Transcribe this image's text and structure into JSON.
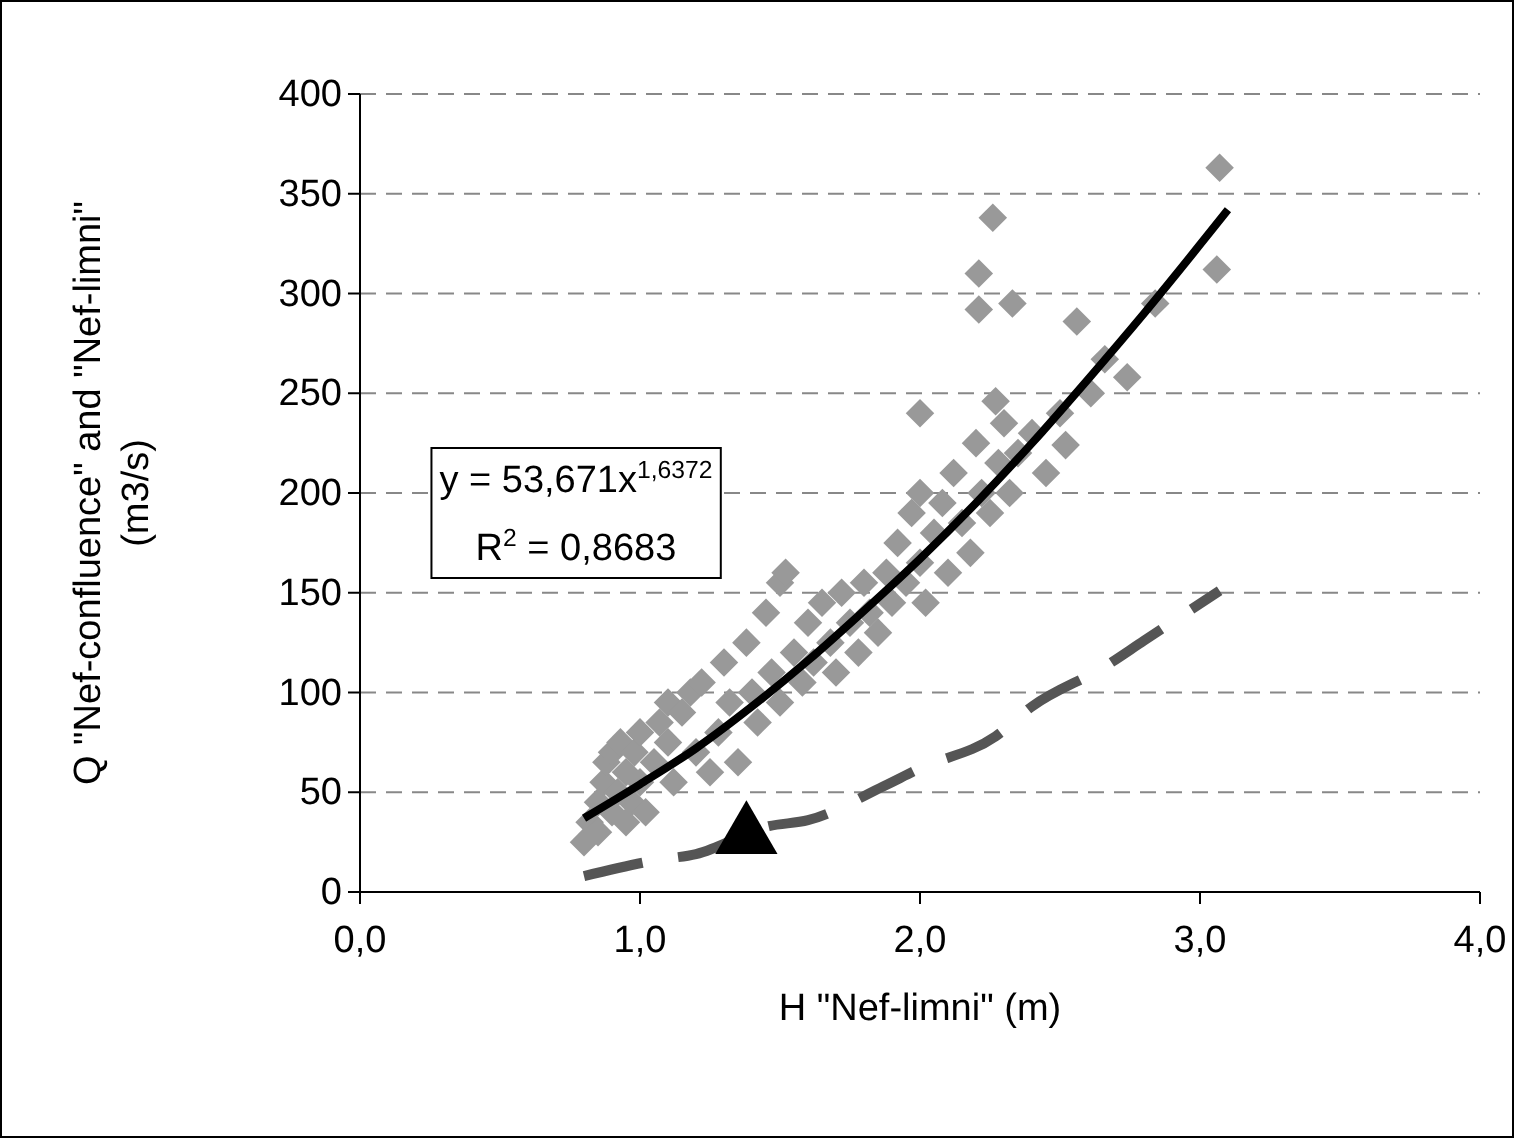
{
  "chart_data": {
    "type": "scatter",
    "xlabel": "H \"Nef-limni\" (m)",
    "ylabel": "Q \"Nef-confluence\" and \"Nef-limni\"\n(m3/s)",
    "xlim": [
      0,
      4
    ],
    "ylim": [
      0,
      400
    ],
    "xticks": [
      {
        "value": 0,
        "label": "0,0"
      },
      {
        "value": 1,
        "label": "1,0"
      },
      {
        "value": 2,
        "label": "2,0"
      },
      {
        "value": 3,
        "label": "3,0"
      },
      {
        "value": 4,
        "label": "4,0"
      }
    ],
    "yticks": [
      0,
      50,
      100,
      150,
      200,
      250,
      300,
      350,
      400
    ],
    "grid": "y",
    "annotations": [
      "y = 53,671x$^{1,6372}$",
      "R$^{2}$ = 0,8683"
    ],
    "series": [
      {
        "marker": "diamond",
        "color": "#999999",
        "x": [
          0.8,
          0.82,
          0.85,
          0.85,
          0.87,
          0.88,
          0.9,
          0.9,
          0.92,
          0.93,
          0.95,
          0.95,
          0.97,
          0.98,
          1.0,
          1.0,
          1.02,
          1.05,
          1.07,
          1.1,
          1.1,
          1.12,
          1.15,
          1.18,
          1.2,
          1.22,
          1.25,
          1.28,
          1.3,
          1.32,
          1.35,
          1.38,
          1.4,
          1.42,
          1.45,
          1.47,
          1.5,
          1.5,
          1.52,
          1.55,
          1.58,
          1.6,
          1.62,
          1.65,
          1.68,
          1.7,
          1.72,
          1.75,
          1.78,
          1.8,
          1.82,
          1.85,
          1.88,
          1.9,
          1.92,
          1.95,
          1.97,
          2.0,
          2.0,
          2.02,
          2.05,
          2.08,
          2.1,
          2.12,
          2.15,
          2.18,
          2.2,
          2.22,
          2.25,
          2.28,
          2.3,
          2.32,
          2.35,
          2.4,
          2.45,
          2.5,
          3.07,
          3.06,
          2.26,
          2.21,
          2.21,
          2.33,
          2.56,
          2.0,
          2.84,
          2.74,
          2.61,
          2.66,
          2.27,
          2.52
        ],
        "values": [
          25,
          35,
          30,
          45,
          55,
          65,
          40,
          70,
          50,
          75,
          35,
          60,
          45,
          70,
          55,
          80,
          40,
          65,
          85,
          75,
          95,
          55,
          90,
          100,
          70,
          105,
          60,
          80,
          115,
          95,
          65,
          125,
          100,
          85,
          140,
          110,
          155,
          95,
          160,
          120,
          105,
          135,
          115,
          145,
          125,
          110,
          150,
          135,
          120,
          155,
          140,
          130,
          160,
          145,
          175,
          155,
          190,
          165,
          200,
          145,
          180,
          195,
          160,
          210,
          185,
          170,
          225,
          200,
          190,
          215,
          235,
          200,
          220,
          230,
          210,
          240,
          363,
          312,
          338,
          310,
          292,
          295,
          286,
          240,
          295,
          258,
          250,
          267,
          246,
          224
        ]
      },
      {
        "type": "line",
        "line_style": "solid",
        "color": "#000000",
        "x": [
          0.8,
          1.0,
          1.2,
          1.4,
          1.6,
          1.8,
          2.0,
          2.2,
          2.4,
          2.6,
          2.8,
          3.1
        ],
        "values": [
          37,
          54,
          72,
          93,
          116,
          141,
          167,
          195,
          225,
          257,
          290,
          342
        ]
      },
      {
        "type": "line",
        "line_style": "dashed",
        "color": "#555555",
        "x": [
          0.8,
          1.06,
          1.2,
          1.46,
          1.6,
          1.87,
          2.0,
          2.27,
          2.4,
          2.66,
          2.8,
          3.07
        ],
        "values": [
          8,
          16,
          19,
          33,
          36,
          53,
          62,
          78,
          93,
          113,
          126,
          151
        ]
      },
      {
        "type": "scatter",
        "marker": "triangle",
        "color": "#000000",
        "x": [
          1.38
        ],
        "values": [
          28
        ]
      }
    ]
  }
}
